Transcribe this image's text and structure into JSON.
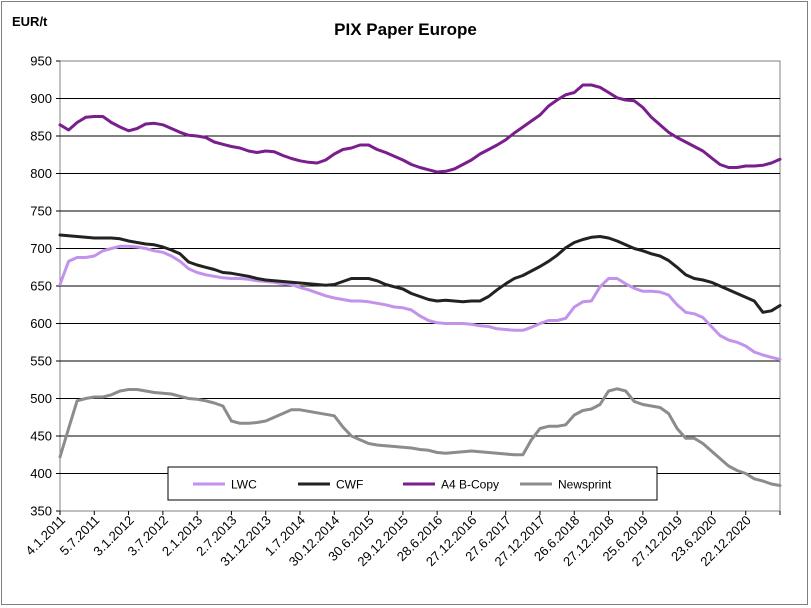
{
  "chart_data": {
    "type": "line",
    "title": "PIX Paper Europe",
    "ylabel": "EUR/t",
    "ylim": [
      350,
      950
    ],
    "yticks": [
      350,
      400,
      450,
      500,
      550,
      600,
      650,
      700,
      750,
      800,
      850,
      900,
      950
    ],
    "xticks": [
      "4.1.2011",
      "5.7.2011",
      "3.1.2012",
      "3.7.2012",
      "2.1.2013",
      "2.7.2013",
      "31.12.2013",
      "1.7.2014",
      "30.12.2014",
      "30.6.2015",
      "29.12.2015",
      "28.6.2016",
      "27.12.2016",
      "27.6.2017",
      "27.12.2017",
      "26.6.2018",
      "27.12.2018",
      "25.6.2019",
      "27.12.2019",
      "23.6.2020",
      "22.12.2020"
    ],
    "x_index": [
      0,
      0.25,
      0.5,
      0.75,
      1,
      1.25,
      1.5,
      1.75,
      2,
      2.25,
      2.5,
      2.75,
      3,
      3.25,
      3.5,
      3.75,
      4,
      4.25,
      4.5,
      4.75,
      5,
      5.25,
      5.5,
      5.75,
      6,
      6.25,
      6.5,
      6.75,
      7,
      7.25,
      7.5,
      7.75,
      8,
      8.25,
      8.5,
      8.75,
      9,
      9.25,
      9.5,
      9.75,
      10,
      10.25,
      10.5,
      10.75,
      11,
      11.25,
      11.5,
      11.75,
      12,
      12.25,
      12.5,
      12.75,
      13,
      13.25,
      13.5,
      13.75,
      14,
      14.25,
      14.5,
      14.75,
      15,
      15.25,
      15.5,
      15.75,
      16,
      16.25,
      16.5,
      16.75,
      17,
      17.25,
      17.5,
      17.75,
      18,
      18.25,
      18.5,
      18.75,
      19,
      19.25,
      19.5,
      19.75,
      20,
      20.25,
      20.5,
      20.75,
      21
    ],
    "grid": true,
    "legend_position": "bottom-center",
    "series": [
      {
        "name": "LWC",
        "color": "#c393ec",
        "values": [
          652,
          683,
          688,
          688,
          690,
          697,
          700,
          703,
          703,
          702,
          700,
          697,
          695,
          690,
          683,
          673,
          668,
          665,
          663,
          661,
          660,
          660,
          659,
          657,
          656,
          655,
          653,
          652,
          648,
          645,
          641,
          637,
          634,
          632,
          630,
          630,
          629,
          627,
          625,
          622,
          621,
          618,
          610,
          604,
          601,
          600,
          600,
          600,
          599,
          597,
          596,
          593,
          592,
          591,
          591,
          595,
          600,
          604,
          604,
          607,
          622,
          629,
          630,
          649,
          660,
          660,
          653,
          647,
          643,
          643,
          642,
          638,
          625,
          615,
          613,
          608,
          596,
          584,
          578,
          575,
          570,
          562,
          558,
          555,
          552
        ]
      },
      {
        "name": "CWF",
        "color": "#222222",
        "values": [
          718,
          717,
          716,
          715,
          714,
          714,
          714,
          713,
          710,
          708,
          706,
          705,
          702,
          698,
          693,
          682,
          678,
          675,
          672,
          668,
          667,
          665,
          663,
          660,
          658,
          657,
          656,
          655,
          654,
          653,
          652,
          651,
          652,
          656,
          660,
          660,
          660,
          657,
          652,
          649,
          646,
          640,
          636,
          632,
          630,
          631,
          630,
          629,
          630,
          630,
          636,
          645,
          653,
          660,
          664,
          670,
          676,
          683,
          691,
          701,
          708,
          712,
          715,
          716,
          714,
          710,
          705,
          700,
          697,
          693,
          690,
          684,
          675,
          665,
          660,
          658,
          655,
          650,
          645,
          640,
          635,
          630,
          615,
          617,
          624
        ]
      },
      {
        "name": "A4 B-Copy",
        "color": "#7a1e8e",
        "values": [
          865,
          858,
          868,
          875,
          876,
          876,
          868,
          862,
          857,
          860,
          866,
          867,
          865,
          860,
          855,
          851,
          850,
          848,
          842,
          839,
          836,
          834,
          830,
          828,
          830,
          829,
          824,
          820,
          817,
          815,
          814,
          818,
          826,
          832,
          834,
          838,
          838,
          832,
          828,
          823,
          818,
          812,
          808,
          805,
          802,
          803,
          806,
          812,
          818,
          826,
          832,
          838,
          845,
          854,
          862,
          870,
          878,
          890,
          898,
          905,
          908,
          918,
          918,
          915,
          908,
          901,
          898,
          897,
          888,
          875,
          865,
          855,
          848,
          842,
          836,
          830,
          821,
          812,
          808,
          808,
          810,
          810,
          811,
          814,
          819
        ]
      },
      {
        "name": "Newsprint",
        "color": "#8c8c8c",
        "values": [
          422,
          460,
          497,
          500,
          502,
          502,
          505,
          510,
          512,
          512,
          510,
          508,
          507,
          506,
          503,
          500,
          499,
          497,
          494,
          490,
          470,
          467,
          467,
          468,
          470,
          475,
          480,
          485,
          485,
          483,
          481,
          479,
          477,
          462,
          450,
          445,
          440,
          438,
          437,
          436,
          435,
          434,
          432,
          431,
          428,
          427,
          428,
          429,
          430,
          429,
          428,
          427,
          426,
          425,
          425,
          445,
          460,
          463,
          463,
          465,
          478,
          484,
          486,
          492,
          510,
          513,
          510,
          496,
          492,
          490,
          488,
          480,
          460,
          447,
          447,
          440,
          430,
          420,
          410,
          404,
          400,
          393,
          390,
          386,
          384
        ]
      }
    ]
  }
}
